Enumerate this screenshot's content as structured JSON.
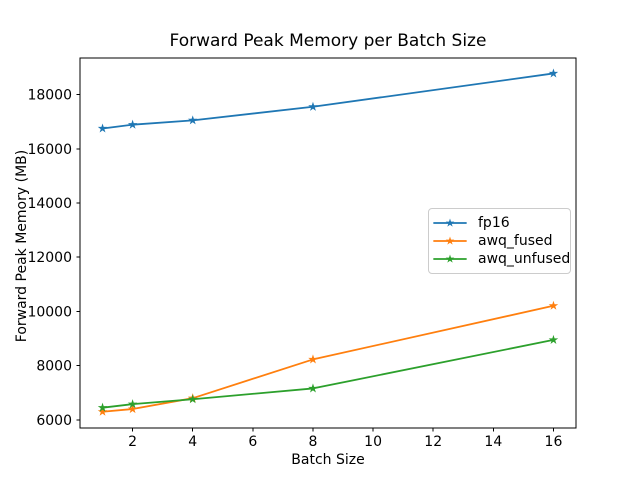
{
  "figure": {
    "kind": "matplotlib-line-chart",
    "background": "#ffffff",
    "text_color": "#000000",
    "spine_color": "#000000",
    "legend_border_color": "#cccccc"
  },
  "chart_data": {
    "type": "line",
    "title": "Forward Peak Memory per Batch Size",
    "xlabel": "Batch Size",
    "ylabel": "Forward Peak Memory (MB)",
    "x": [
      1,
      2,
      4,
      8,
      16
    ],
    "series": [
      {
        "name": "fp16",
        "color": "#1f77b4",
        "marker": "star",
        "values": [
          16750,
          16890,
          17050,
          17550,
          18780
        ]
      },
      {
        "name": "awq_fused",
        "color": "#ff7f0e",
        "marker": "star",
        "values": [
          6300,
          6400,
          6800,
          8230,
          10210
        ]
      },
      {
        "name": "awq_unfused",
        "color": "#2ca02c",
        "marker": "star",
        "values": [
          6450,
          6580,
          6760,
          7160,
          8950
        ]
      }
    ],
    "xlim": [
      0.25,
      16.75
    ],
    "ylim": [
      5700,
      19350
    ],
    "xticks": [
      2,
      4,
      6,
      8,
      10,
      12,
      14,
      16
    ],
    "yticks": [
      6000,
      8000,
      10000,
      12000,
      14000,
      16000,
      18000
    ],
    "grid": false,
    "legend": {
      "position": "center-right",
      "entries": [
        "fp16",
        "awq_fused",
        "awq_unfused"
      ]
    }
  }
}
